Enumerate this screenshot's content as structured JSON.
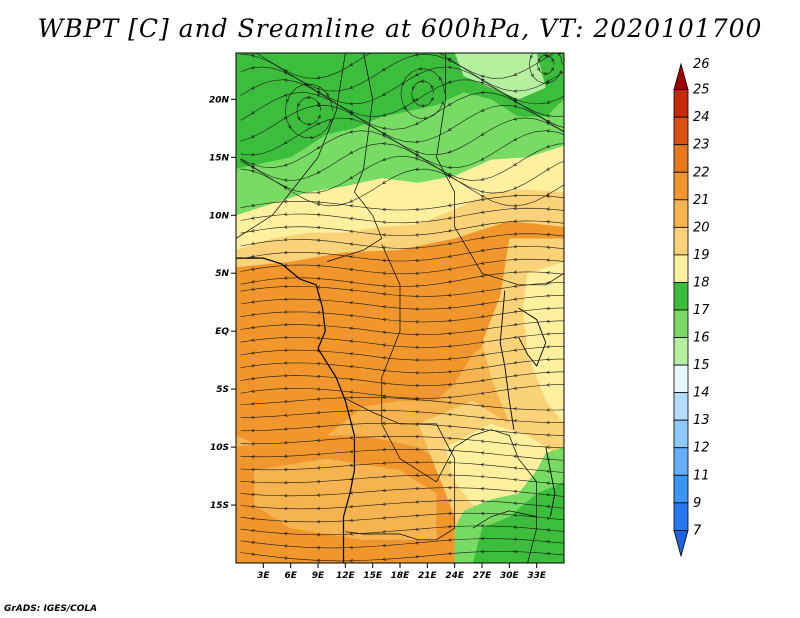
{
  "title": "WBPT [C] and Sreamline at 600hPa, VT: 2020101700",
  "footer": "GrADS: IGES/COLA",
  "map": {
    "lon_range": [
      0,
      36
    ],
    "lat_range": [
      -20,
      24
    ],
    "lat_ticks": [
      {
        "value": 20,
        "label": "20N"
      },
      {
        "value": 15,
        "label": "15N"
      },
      {
        "value": 10,
        "label": "10N"
      },
      {
        "value": 5,
        "label": "5N"
      },
      {
        "value": 0,
        "label": "EQ"
      },
      {
        "value": -5,
        "label": "5S"
      },
      {
        "value": -10,
        "label": "10S"
      },
      {
        "value": -15,
        "label": "15S"
      }
    ],
    "lon_ticks": [
      {
        "value": 3,
        "label": "3E"
      },
      {
        "value": 6,
        "label": "6E"
      },
      {
        "value": 9,
        "label": "9E"
      },
      {
        "value": 12,
        "label": "12E"
      },
      {
        "value": 15,
        "label": "15E"
      },
      {
        "value": 18,
        "label": "18E"
      },
      {
        "value": 21,
        "label": "21E"
      },
      {
        "value": 24,
        "label": "24E"
      },
      {
        "value": 27,
        "label": "27E"
      },
      {
        "value": 30,
        "label": "30E"
      },
      {
        "value": 33,
        "label": "33E"
      }
    ]
  },
  "colorbar": {
    "levels": [
      "7",
      "9",
      "11",
      "12",
      "13",
      "14",
      "15",
      "16",
      "17",
      "18",
      "19",
      "20",
      "21",
      "22",
      "23",
      "24",
      "25",
      "26"
    ],
    "colors": [
      "#1e64dc",
      "#2878f0",
      "#3c96f5",
      "#64aff8",
      "#8cc8fa",
      "#b4dcfc",
      "#e6f8ff",
      "#b4f0a0",
      "#78dc64",
      "#3cbe3c",
      "#fff0a0",
      "#fad278",
      "#f5b450",
      "#f0962d",
      "#e6781e",
      "#dc5014",
      "#c8280a",
      "#a00000"
    ]
  },
  "field_colors": {
    "green_dark": "#3cbe3c",
    "green_mid": "#78dc64",
    "green_light": "#b4f0a0",
    "yellow": "#fff0a0",
    "tan": "#fad278",
    "orange_light": "#f5b450",
    "orange": "#f0962d"
  }
}
